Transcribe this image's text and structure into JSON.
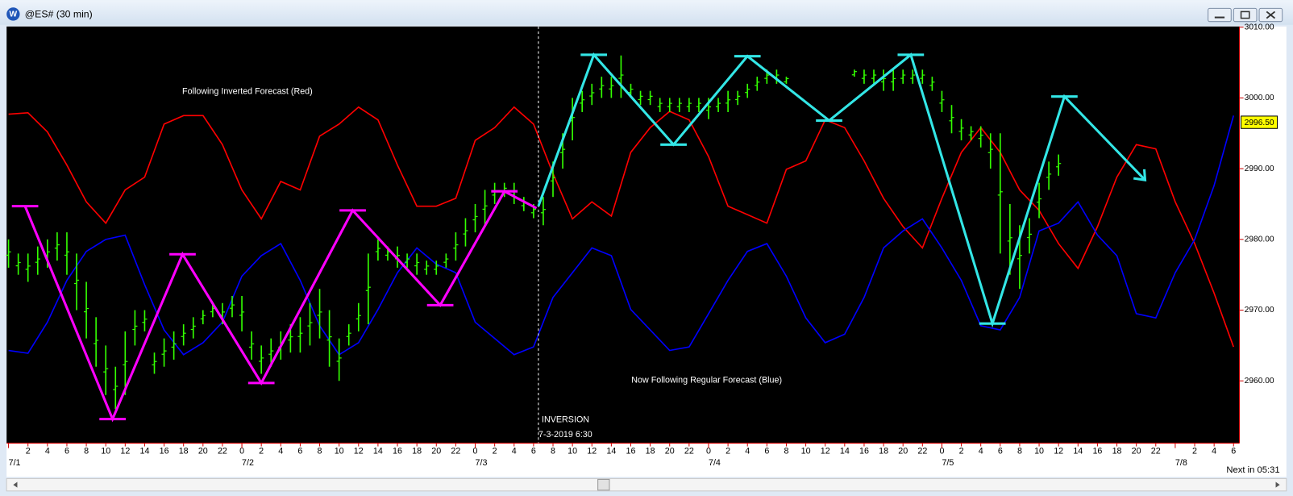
{
  "window": {
    "app_icon": "W",
    "title": "@ES# (30 min)",
    "status": "Next in 05:31"
  },
  "chart_data": {
    "type": "line",
    "xlim": [
      -0.2,
      126.6
    ],
    "ylim": [
      2951.2,
      3010.1
    ],
    "yticks": [
      {
        "value": 2960,
        "label": "2960.00"
      },
      {
        "value": 2970,
        "label": "2970.00"
      },
      {
        "value": 2980,
        "label": "2980.00"
      },
      {
        "value": 2990,
        "label": "2990.00"
      },
      {
        "value": 3000,
        "label": "3000.00"
      },
      {
        "value": 3010,
        "label": "3010.00"
      }
    ],
    "xticks": [
      {
        "value": 2,
        "label": "2"
      },
      {
        "value": 4,
        "label": "4"
      },
      {
        "value": 6,
        "label": "6"
      },
      {
        "value": 8,
        "label": "8"
      },
      {
        "value": 10,
        "label": "10"
      },
      {
        "value": 12,
        "label": "12"
      },
      {
        "value": 14,
        "label": "14"
      },
      {
        "value": 16,
        "label": "16"
      },
      {
        "value": 18,
        "label": "18"
      },
      {
        "value": 20,
        "label": "20"
      },
      {
        "value": 22,
        "label": "22"
      },
      {
        "value": 24,
        "label": "0"
      },
      {
        "value": 26,
        "label": "2"
      },
      {
        "value": 28,
        "label": "4"
      },
      {
        "value": 30,
        "label": "6"
      },
      {
        "value": 32,
        "label": "8"
      },
      {
        "value": 34,
        "label": "10"
      },
      {
        "value": 36,
        "label": "12"
      },
      {
        "value": 38,
        "label": "14"
      },
      {
        "value": 40,
        "label": "16"
      },
      {
        "value": 42,
        "label": "18"
      },
      {
        "value": 44,
        "label": "20"
      },
      {
        "value": 46,
        "label": "22"
      },
      {
        "value": 48,
        "label": "0"
      },
      {
        "value": 50,
        "label": "2"
      },
      {
        "value": 52,
        "label": "4"
      },
      {
        "value": 54,
        "label": "6"
      },
      {
        "value": 56,
        "label": "8"
      },
      {
        "value": 58,
        "label": "10"
      },
      {
        "value": 60,
        "label": "12"
      },
      {
        "value": 62,
        "label": "14"
      },
      {
        "value": 64,
        "label": "16"
      },
      {
        "value": 66,
        "label": "18"
      },
      {
        "value": 68,
        "label": "20"
      },
      {
        "value": 70,
        "label": "22"
      },
      {
        "value": 72,
        "label": "0"
      },
      {
        "value": 74,
        "label": "2"
      },
      {
        "value": 76,
        "label": "4"
      },
      {
        "value": 78,
        "label": "6"
      },
      {
        "value": 80,
        "label": "8"
      },
      {
        "value": 82,
        "label": "10"
      },
      {
        "value": 84,
        "label": "12"
      },
      {
        "value": 86,
        "label": "14"
      },
      {
        "value": 88,
        "label": "16"
      },
      {
        "value": 90,
        "label": "18"
      },
      {
        "value": 92,
        "label": "20"
      },
      {
        "value": 94,
        "label": "22"
      },
      {
        "value": 96,
        "label": "0"
      },
      {
        "value": 98,
        "label": "2"
      },
      {
        "value": 100,
        "label": "4"
      },
      {
        "value": 102,
        "label": "6"
      },
      {
        "value": 104,
        "label": "8"
      },
      {
        "value": 106,
        "label": "10"
      },
      {
        "value": 108,
        "label": "12"
      },
      {
        "value": 110,
        "label": "14"
      },
      {
        "value": 112,
        "label": "16"
      },
      {
        "value": 114,
        "label": "18"
      },
      {
        "value": 116,
        "label": "20"
      },
      {
        "value": 118,
        "label": "22"
      },
      {
        "value": 122,
        "label": "2"
      },
      {
        "value": 124,
        "label": "4"
      },
      {
        "value": 126,
        "label": "6"
      }
    ],
    "xdates": [
      {
        "value": 0,
        "label": "7/1"
      },
      {
        "value": 24,
        "label": "7/2"
      },
      {
        "value": 48,
        "label": "7/3"
      },
      {
        "value": 72,
        "label": "7/4"
      },
      {
        "value": 96,
        "label": "7/5"
      },
      {
        "value": 120,
        "label": "7/8"
      }
    ],
    "x": [
      0,
      2,
      4,
      6,
      8,
      10,
      12,
      14,
      16,
      18,
      20,
      22,
      24,
      26,
      28,
      30,
      32,
      34,
      36,
      38,
      40,
      42,
      44,
      46,
      48,
      50,
      52,
      54,
      56,
      58,
      60,
      62,
      64,
      66,
      68,
      70,
      72,
      74,
      76,
      78,
      80,
      82,
      84,
      86,
      88,
      90,
      92,
      94,
      96,
      98,
      100,
      102,
      104,
      106,
      108,
      110,
      112,
      114,
      116,
      118,
      120,
      122,
      124,
      126
    ],
    "series": [
      {
        "color": "#ff0000",
        "values": [
          2997.7,
          2997.9,
          2995.2,
          2990.5,
          2985.3,
          2982.3,
          2987.0,
          2988.8,
          2996.3,
          2997.5,
          2997.5,
          2993.4,
          2987.0,
          2982.9,
          2988.2,
          2987.0,
          2994.6,
          2996.3,
          2998.7,
          2996.9,
          2990.5,
          2984.7,
          2984.7,
          2985.8,
          2994.0,
          2995.8,
          2998.7,
          2996.3,
          2989.3,
          2982.9,
          2985.3,
          2983.3,
          2992.3,
          2995.8,
          2998.1,
          2996.9,
          2991.7,
          2984.7,
          2983.5,
          2982.3,
          2989.9,
          2991.1,
          2996.9,
          2995.8,
          2991.1,
          2985.8,
          2981.8,
          2978.8,
          2985.8,
          2992.3,
          2995.8,
          2992.3,
          2987.0,
          2984.1,
          2979.4,
          2975.9,
          2981.8,
          2988.8,
          2993.4,
          2992.8,
          2985.3,
          2979.4,
          2972.4,
          2964.8
        ]
      },
      {
        "color": "#0000ff",
        "values": [
          2964.3,
          2963.9,
          2968.3,
          2974.2,
          2978.3,
          2980.0,
          2980.6,
          2973.6,
          2967.2,
          2963.7,
          2965.4,
          2968.3,
          2974.8,
          2977.7,
          2979.4,
          2974.2,
          2967.8,
          2963.7,
          2965.4,
          2970.1,
          2975.3,
          2978.8,
          2976.5,
          2975.3,
          2968.3,
          2966.0,
          2963.7,
          2964.8,
          2971.8,
          2975.3,
          2978.8,
          2977.7,
          2970.1,
          2967.2,
          2964.3,
          2964.8,
          2969.5,
          2974.2,
          2978.3,
          2979.4,
          2974.8,
          2968.9,
          2965.4,
          2966.6,
          2971.8,
          2978.8,
          2981.2,
          2982.9,
          2978.8,
          2974.2,
          2967.8,
          2967.2,
          2971.8,
          2981.2,
          2982.3,
          2985.3,
          2980.6,
          2977.7,
          2969.5,
          2968.9,
          2975.3,
          2980.0,
          2987.6,
          2997.5
        ]
      }
    ],
    "price": {
      "color": "#33ff00",
      "x": [
        0,
        1,
        2,
        3,
        4,
        5,
        6,
        7,
        8,
        9,
        10,
        11,
        12,
        13,
        14,
        15,
        16,
        17,
        18,
        19,
        20,
        21,
        22,
        23,
        24,
        25,
        26,
        27,
        28,
        29,
        30,
        31,
        32,
        33,
        34,
        35,
        36,
        37,
        38,
        39,
        40,
        41,
        42,
        43,
        44,
        45,
        46,
        47,
        48,
        49,
        50,
        51,
        52,
        53,
        54,
        55,
        56,
        57,
        58,
        59,
        60,
        61,
        62,
        63,
        64,
        65,
        66,
        67,
        68,
        69,
        70,
        71,
        72,
        73,
        74,
        75,
        76,
        77,
        78,
        79,
        80,
        87,
        88,
        89,
        90,
        91,
        92,
        93,
        94,
        95,
        96,
        97,
        98,
        99,
        100,
        101,
        102,
        103,
        104,
        105,
        106,
        107,
        108
      ],
      "low": [
        2976,
        2975,
        2974,
        2975,
        2976,
        2977,
        2975,
        2970,
        2966,
        2962,
        2958,
        2956,
        2958,
        2965,
        2967,
        2961,
        2962,
        2963,
        2965,
        2966,
        2968,
        2969,
        2968,
        2969,
        2967,
        2963,
        2961,
        2962,
        2963,
        2964,
        2964,
        2965,
        2966,
        2962,
        2960,
        2965,
        2967,
        2968,
        2977,
        2977,
        2976,
        2976,
        2975,
        2975,
        2975,
        2976,
        2977,
        2979,
        2981,
        2982,
        2985,
        2986,
        2985,
        2984,
        2983,
        2982,
        2986,
        2990,
        2994,
        2998,
        2999,
        3000,
        3000,
        3000,
        3000,
        2999,
        2999,
        2998,
        2998,
        2998,
        2998,
        2998,
        2997,
        2998,
        2998,
        2999,
        3000,
        3001,
        3002,
        3002,
        3002,
        3003,
        3002,
        3002,
        3001,
        3001,
        3002,
        3002,
        3002,
        3001,
        2998,
        2995,
        2994,
        2994,
        2993,
        2990,
        2978,
        2975,
        2973,
        2978,
        2983,
        2987,
        2989
      ],
      "high": [
        2980,
        2978,
        2978,
        2979,
        2980,
        2981,
        2981,
        2978,
        2974,
        2969,
        2965,
        2962,
        2967,
        2970,
        2970,
        2964,
        2966,
        2967,
        2968,
        2969,
        2970,
        2971,
        2971,
        2972,
        2972,
        2967,
        2965,
        2966,
        2967,
        2968,
        2969,
        2971,
        2973,
        2970,
        2966,
        2968,
        2971,
        2978,
        2980,
        2979,
        2979,
        2978,
        2978,
        2977,
        2977,
        2978,
        2981,
        2983,
        2985,
        2987,
        2988,
        2988,
        2988,
        2986,
        2985,
        2986,
        2991,
        2995,
        3000,
        3001,
        3002,
        3003,
        3003,
        3006,
        3002,
        3001,
        3001,
        3000,
        3000,
        3000,
        3000,
        3000,
        3000,
        3000,
        3001,
        3001,
        3002,
        3003,
        3004,
        3004,
        3003,
        3004,
        3004,
        3004,
        3004,
        3004,
        3004,
        3004,
        3004,
        3003,
        3001,
        2999,
        2997,
        2996,
        2996,
        2995,
        2995,
        2985,
        2982,
        2983,
        2988,
        2991,
        2992
      ]
    },
    "last_price": {
      "value": 2996.5,
      "label": "2996.50"
    },
    "zigzags": [
      {
        "color": "#ff00ff",
        "x": [
          1.7,
          10.7,
          17.9,
          26,
          35.4,
          44.4,
          51,
          54.3
        ],
        "values": [
          2984.7,
          2954.6,
          2977.9,
          2959.7,
          2984.1,
          2970.7,
          2986.8,
          2984.4
        ]
      },
      {
        "color": "#33e6e6",
        "x": [
          54.5,
          60.2,
          68.4,
          76,
          84.4,
          92.8,
          101.2,
          108.6,
          116.9
        ],
        "values": [
          2984.7,
          3006.1,
          2993.4,
          3005.9,
          2996.8,
          3006.1,
          2968.1,
          3000.2,
          2988.4
        ]
      }
    ],
    "inversion_x": 54.5,
    "annotations": [
      "Following Inverted Forecast (Red)",
      "Now Following Regular Forecast (Blue)",
      "INVERSION",
      "7-3-2019 6:30"
    ]
  }
}
